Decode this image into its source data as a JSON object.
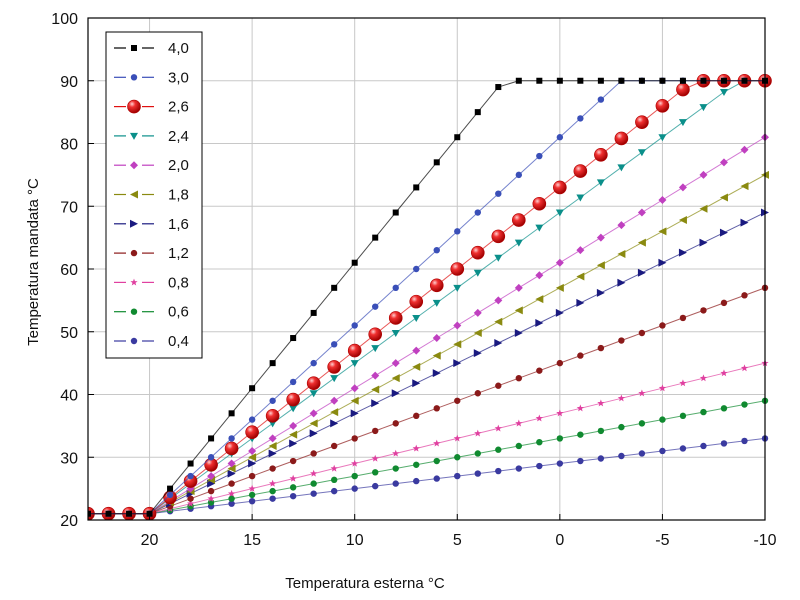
{
  "chart_data": {
    "type": "line",
    "title": "",
    "xlabel": "Temperatura esterna °C",
    "ylabel": "Temperatura mandata °C",
    "xlim": [
      23,
      -10
    ],
    "ylim": [
      20,
      100
    ],
    "x_reversed": true,
    "grid": true,
    "legend_position": "top-left",
    "x_ticks": [
      {
        "value": 20,
        "label": "20"
      },
      {
        "value": 15,
        "label": "15"
      },
      {
        "value": 10,
        "label": "10"
      },
      {
        "value": 5,
        "label": "5"
      },
      {
        "value": 0,
        "label": "0"
      },
      {
        "value": -5,
        "label": "-5"
      },
      {
        "value": -10,
        "label": "-10"
      }
    ],
    "y_ticks": [
      {
        "value": 20,
        "label": "20"
      },
      {
        "value": 30,
        "label": "30"
      },
      {
        "value": 40,
        "label": "40"
      },
      {
        "value": 50,
        "label": "50"
      },
      {
        "value": 60,
        "label": "60"
      },
      {
        "value": 70,
        "label": "70"
      },
      {
        "value": 80,
        "label": "80"
      },
      {
        "value": 90,
        "label": "90"
      },
      {
        "value": 100,
        "label": "100"
      }
    ],
    "x_start": 23,
    "x_step": -1,
    "series": [
      {
        "name": "4,0",
        "color": "#000000",
        "marker": "square",
        "slope": 4.0,
        "max": 90
      },
      {
        "name": "3,0",
        "color": "#3a4fb8",
        "marker": "circle",
        "slope": 3.0,
        "max": 90
      },
      {
        "name": "2,6",
        "color": "#e01010",
        "marker": "big-circle",
        "slope": 2.6,
        "max": 90
      },
      {
        "name": "2,4",
        "color": "#0a8f8a",
        "marker": "triangle-down",
        "slope": 2.4,
        "max": 90
      },
      {
        "name": "2,0",
        "color": "#c040c0",
        "marker": "diamond",
        "slope": 2.0,
        "max": 90
      },
      {
        "name": "1,8",
        "color": "#8a8a10",
        "marker": "triangle-left",
        "slope": 1.8,
        "max": 90
      },
      {
        "name": "1,6",
        "color": "#1a1a80",
        "marker": "triangle-right",
        "slope": 1.6,
        "max": 90
      },
      {
        "name": "1,2",
        "color": "#8b1a1a",
        "marker": "circle",
        "slope": 1.2,
        "max": 90
      },
      {
        "name": "0,8",
        "color": "#e040a0",
        "marker": "star",
        "slope": 0.8,
        "max": 90
      },
      {
        "name": "0,6",
        "color": "#108a30",
        "marker": "circle",
        "slope": 0.6,
        "max": 90
      },
      {
        "name": "0,4",
        "color": "#3a3aa0",
        "marker": "circle",
        "slope": 0.4,
        "max": 90
      }
    ]
  }
}
